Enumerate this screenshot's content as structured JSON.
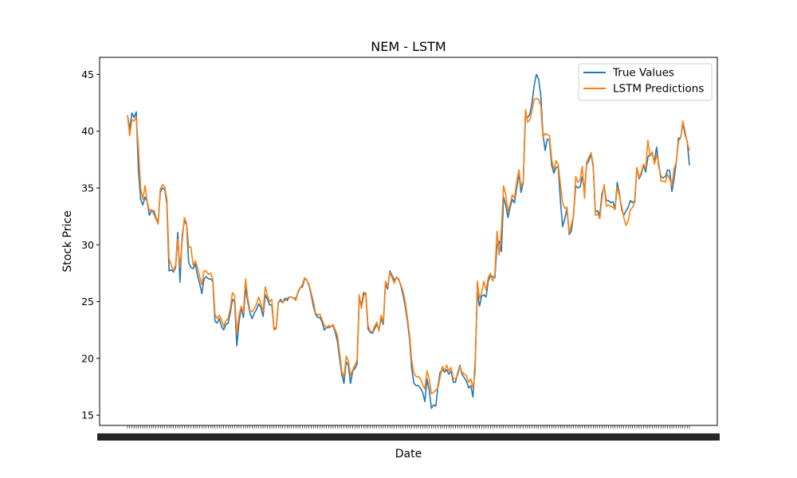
{
  "chart_data": {
    "type": "line",
    "title": "NEM - LSTM",
    "xlabel": "Date",
    "ylabel": "Stock Price",
    "ylim": [
      14.1,
      46.5
    ],
    "yticks": [
      15,
      20,
      25,
      30,
      35,
      40,
      45
    ],
    "grid": false,
    "legend_position": "top-right",
    "series": [
      {
        "name": "True Values",
        "color": "#1f77b4",
        "values": [
          41.4,
          40.2,
          41.6,
          41.2,
          41.7,
          36.5,
          34.0,
          33.5,
          34.2,
          33.8,
          32.6,
          33.0,
          33.0,
          32.4,
          32.0,
          34.6,
          35.0,
          34.9,
          33.6,
          27.7,
          27.8,
          27.6,
          28.0,
          31.1,
          26.7,
          30.8,
          32.1,
          31.8,
          28.4,
          28.0,
          27.9,
          28.3,
          27.3,
          26.6,
          25.7,
          27.0,
          27.2,
          27.0,
          27.0,
          26.8,
          23.3,
          23.1,
          23.5,
          22.8,
          22.5,
          23.0,
          23.1,
          24.0,
          25.2,
          25.0,
          21.1,
          23.2,
          24.5,
          23.6,
          26.2,
          25.0,
          24.0,
          23.5,
          24.0,
          24.3,
          24.8,
          24.5,
          23.7,
          25.6,
          25.2,
          24.7,
          24.7,
          22.6,
          22.7,
          24.9,
          25.2,
          24.9,
          25.3,
          25.1,
          25.4,
          25.4,
          25.3,
          25.3,
          25.8,
          26.2,
          26.3,
          27.0,
          26.9,
          26.4,
          25.6,
          24.6,
          23.9,
          23.6,
          23.6,
          23.2,
          22.5,
          22.7,
          22.7,
          22.8,
          22.9,
          22.3,
          21.5,
          20.0,
          18.6,
          17.8,
          19.7,
          19.4,
          17.8,
          18.9,
          19.1,
          19.5,
          25.3,
          24.7,
          25.8,
          25.6,
          22.6,
          22.3,
          22.2,
          22.6,
          23.0,
          22.5,
          23.5,
          23.0,
          26.6,
          26.1,
          27.7,
          27.3,
          26.9,
          27.1,
          27.0,
          26.4,
          25.6,
          24.6,
          23.3,
          21.7,
          19.1,
          17.8,
          17.6,
          17.6,
          17.4,
          17.0,
          16.2,
          18.2,
          17.2,
          15.6,
          15.9,
          15.8,
          17.6,
          18.8,
          19.0,
          18.8,
          19.0,
          18.6,
          18.9,
          17.9,
          17.9,
          18.7,
          19.4,
          18.6,
          18.3,
          18.0,
          17.4,
          17.6,
          16.6,
          19.6,
          25.8,
          24.6,
          25.5,
          25.6,
          25.4,
          26.8,
          27.3,
          27.2,
          27.1,
          29.9,
          30.3,
          29.4,
          34.2,
          33.5,
          32.4,
          33.3,
          34.0,
          33.7,
          35.0,
          36.3,
          34.6,
          35.5,
          41.3,
          41.2,
          41.5,
          42.5,
          44.0,
          45.0,
          44.6,
          43.2,
          39.8,
          38.3,
          39.3,
          39.2,
          37.0,
          36.3,
          36.8,
          36.9,
          33.9,
          31.6,
          32.3,
          33.2,
          30.9,
          31.2,
          32.7,
          35.2,
          35.0,
          35.1,
          36.0,
          34.7,
          37.1,
          37.4,
          38.0,
          36.9,
          32.9,
          33.0,
          32.6,
          34.5,
          35.1,
          33.9,
          33.9,
          33.7,
          33.8,
          33.2,
          35.5,
          34.5,
          33.1,
          32.6,
          33.0,
          33.3,
          33.9,
          33.7,
          33.9,
          36.8,
          35.8,
          36.2,
          37.0,
          36.4,
          37.7,
          38.0,
          38.0,
          37.3,
          38.6,
          36.9,
          36.0,
          35.9,
          36.0,
          36.6,
          36.5,
          34.7,
          35.8,
          37.3,
          39.4,
          39.4,
          40.7,
          39.7,
          39.1,
          37.0
        ]
      },
      {
        "name": "LSTM Predictions",
        "color": "#ff7f0e",
        "values": [
          41.4,
          39.6,
          41.0,
          40.9,
          41.2,
          38.5,
          35.0,
          34.0,
          35.2,
          33.8,
          33.0,
          33.1,
          32.7,
          32.3,
          31.8,
          34.9,
          35.3,
          35.1,
          34.0,
          28.8,
          28.2,
          27.7,
          28.2,
          30.5,
          28.0,
          30.3,
          32.4,
          31.9,
          29.8,
          29.8,
          28.2,
          28.6,
          28.0,
          27.2,
          26.5,
          27.7,
          27.7,
          27.4,
          27.5,
          27.0,
          23.9,
          23.5,
          23.8,
          23.4,
          22.8,
          23.3,
          23.5,
          24.4,
          25.8,
          25.5,
          22.2,
          23.8,
          24.6,
          24.0,
          27.0,
          25.3,
          24.2,
          24.1,
          24.4,
          24.8,
          25.4,
          24.8,
          24.1,
          26.3,
          25.5,
          25.0,
          25.2,
          22.5,
          22.6,
          25.0,
          25.0,
          25.0,
          25.1,
          25.3,
          25.4,
          25.4,
          25.3,
          25.1,
          25.9,
          26.2,
          26.5,
          27.1,
          26.9,
          26.5,
          25.8,
          25.0,
          24.0,
          23.8,
          23.9,
          23.4,
          22.9,
          22.7,
          22.9,
          22.8,
          23.0,
          22.5,
          22.0,
          20.5,
          18.9,
          18.3,
          20.2,
          19.8,
          18.5,
          19.0,
          19.4,
          19.8,
          25.6,
          24.4,
          25.5,
          25.8,
          22.9,
          22.4,
          22.3,
          22.8,
          23.2,
          22.4,
          23.8,
          23.2,
          26.8,
          26.3,
          27.6,
          27.1,
          26.6,
          27.2,
          26.9,
          26.5,
          25.9,
          25.0,
          23.6,
          22.1,
          19.8,
          18.7,
          18.4,
          18.4,
          18.2,
          17.7,
          17.3,
          18.9,
          18.2,
          16.9,
          17.0,
          17.2,
          17.4,
          18.4,
          19.3,
          18.9,
          19.4,
          18.9,
          19.2,
          18.2,
          18.2,
          18.5,
          19.3,
          18.8,
          18.6,
          18.5,
          17.9,
          18.2,
          17.4,
          18.8,
          26.8,
          25.3,
          25.8,
          26.8,
          26.0,
          27.1,
          27.5,
          26.8,
          27.4,
          31.2,
          29.1,
          31.3,
          35.2,
          34.4,
          32.9,
          33.6,
          34.4,
          34.1,
          35.5,
          36.6,
          35.1,
          35.6,
          41.9,
          40.8,
          41.0,
          41.8,
          42.8,
          42.9,
          42.8,
          42.3,
          39.5,
          39.8,
          39.7,
          39.6,
          37.5,
          36.6,
          37.4,
          37.1,
          35.3,
          33.7,
          33.2,
          33.3,
          31.0,
          31.8,
          32.5,
          36.0,
          35.5,
          35.7,
          36.9,
          34.1,
          37.3,
          37.7,
          38.1,
          37.1,
          32.6,
          32.7,
          32.3,
          34.1,
          35.3,
          33.4,
          33.5,
          33.4,
          33.3,
          33.1,
          35.1,
          34.3,
          33.4,
          32.4,
          31.7,
          32.1,
          33.1,
          33.3,
          33.7,
          36.8,
          35.9,
          36.4,
          37.1,
          36.7,
          39.2,
          37.8,
          38.2,
          37.1,
          37.9,
          37.2,
          35.6,
          35.6,
          35.5,
          36.2,
          35.8,
          35.2,
          36.7,
          37.3,
          39.1,
          39.4,
          40.9,
          40.0,
          39.0,
          38.3
        ]
      }
    ]
  }
}
